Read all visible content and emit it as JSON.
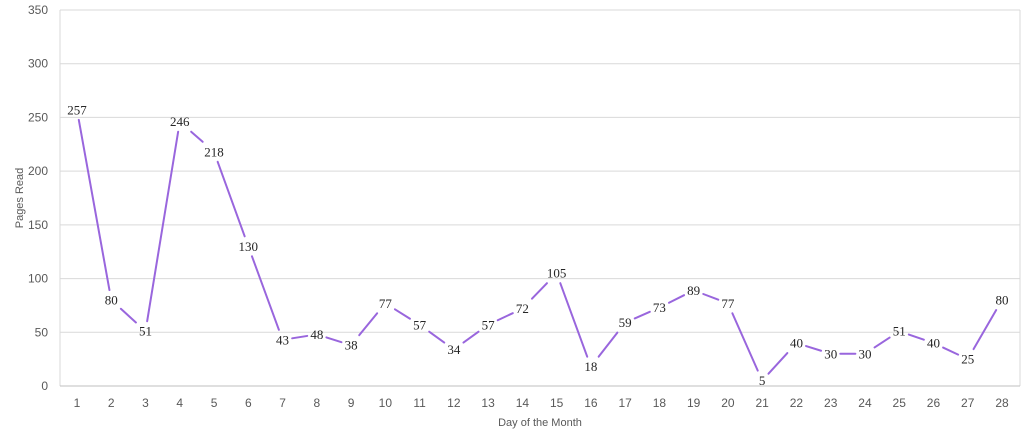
{
  "chart_data": {
    "type": "line",
    "title": "",
    "xlabel": "Day of the Month",
    "ylabel": "Pages Read",
    "ylim": [
      0,
      350
    ],
    "yticks": [
      0,
      50,
      100,
      150,
      200,
      250,
      300,
      350
    ],
    "grid": true,
    "legend": "none",
    "color": "#9966dd",
    "x": [
      1,
      2,
      3,
      4,
      5,
      6,
      7,
      8,
      9,
      10,
      11,
      12,
      13,
      14,
      15,
      16,
      17,
      18,
      19,
      20,
      21,
      22,
      23,
      24,
      25,
      26,
      27,
      28
    ],
    "values": [
      257,
      80,
      51,
      246,
      218,
      130,
      43,
      48,
      38,
      77,
      57,
      34,
      57,
      72,
      105,
      18,
      59,
      73,
      89,
      77,
      5,
      40,
      30,
      30,
      51,
      40,
      25,
      80
    ]
  }
}
